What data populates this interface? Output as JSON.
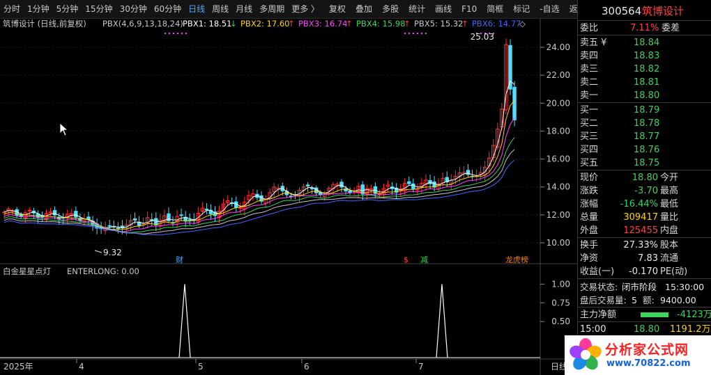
{
  "toolbar": {
    "periods": [
      "分时",
      "1分钟",
      "5分钟",
      "15分钟",
      "30分钟",
      "60分钟",
      "日线",
      "周线",
      "月线",
      "多周期",
      "更多 〉"
    ],
    "active": "日线",
    "tools": [
      "复权",
      "叠加",
      "多股",
      "统计",
      "画线",
      "F10",
      "简框",
      "标记",
      "-自选",
      "返回"
    ]
  },
  "main_panel": {
    "title": "筑博设计 (日线,前复权)",
    "indicator": "PBX(4,6,9,13,18,24)",
    "pbx": [
      {
        "label": "PBX1: 18.51",
        "arrow": "↓",
        "color": "#ffffff"
      },
      {
        "label": "PBX2: 17.60",
        "arrow": "↑",
        "color": "#ffd400"
      },
      {
        "label": "PBX3: 16.74",
        "arrow": "↑",
        "color": "#ff44ff"
      },
      {
        "label": "PBX4: 15.98",
        "arrow": "↑",
        "color": "#3ed35c"
      },
      {
        "label": "PBX5: 15.32",
        "arrow": "↑",
        "color": "#c8c8c8"
      },
      {
        "label": "PBX6: 14.77",
        "arrow": "◇",
        "color": "#4466ff"
      }
    ],
    "high_label": "25.03",
    "low_label": "9.32",
    "y_axis": [
      "24.00",
      "22.00",
      "20.00",
      "18.00",
      "16.00",
      "14.00",
      "12.00",
      "10.00"
    ],
    "markers": [
      {
        "text": "财",
        "color": "#4fa8ff"
      },
      {
        "text": "$",
        "color": "#ff4040"
      },
      {
        "text": "减",
        "color": "#3ed35c"
      },
      {
        "text": "龙虎榜",
        "color": "#ff7b00"
      }
    ]
  },
  "sub_panel": {
    "title": "白金星星点灯",
    "value": "ENTERLONG: 0.00",
    "y_axis": [
      "1.00",
      "0.75",
      "0.50"
    ]
  },
  "x_axis": [
    "2025年",
    "4",
    "5",
    "6",
    "7",
    "日线"
  ],
  "quote": {
    "code": "300564",
    "name": "筑博设计",
    "weibi_label": "委比",
    "weibi": "7.11%",
    "weicha_label": "委差",
    "asks": [
      {
        "label": "卖五 ¥",
        "price": "18.84"
      },
      {
        "label": "卖四",
        "price": "18.83"
      },
      {
        "label": "卖三",
        "price": "18.82"
      },
      {
        "label": "卖二",
        "price": "18.81"
      },
      {
        "label": "卖一",
        "price": "18.80"
      }
    ],
    "bids": [
      {
        "label": "买一",
        "price": "18.79"
      },
      {
        "label": "买二",
        "price": "18.78"
      },
      {
        "label": "买三",
        "price": "18.77"
      },
      {
        "label": "买四",
        "price": "18.76"
      },
      {
        "label": "买五",
        "price": "18.75"
      }
    ],
    "stats": [
      {
        "label": "现价",
        "value": "18.80",
        "color": "green",
        "label2": "今开"
      },
      {
        "label": "涨跌",
        "value": "-3.70",
        "color": "green",
        "label2": "最高"
      },
      {
        "label": "涨幅",
        "value": "-16.44%",
        "color": "green",
        "label2": "最低"
      },
      {
        "label": "总量",
        "value": "309417",
        "color": "yellow",
        "label2": "量比"
      },
      {
        "label": "外盘",
        "value": "125455",
        "color": "red",
        "label2": "内盘"
      }
    ],
    "stats2": [
      {
        "label": "换手",
        "value": "27.33%",
        "label2": "股本"
      },
      {
        "label": "净资",
        "value": "7.83",
        "label2": "流通"
      },
      {
        "label": "收益(一)",
        "value": "-0.170",
        "label2": "PE(动)"
      }
    ],
    "trade_status_label": "交易状态:",
    "trade_status": "闭市阶段",
    "trade_time": "15:30:00",
    "after_volume_label": "盘后交易量:",
    "after_volume": "5",
    "after_amount_label": "额:",
    "after_amount": "9400.00",
    "net_inflow_label": "主力净额",
    "net_inflow": "-4123万",
    "tick_time": "15:00",
    "tick_price": "18.80",
    "tick_amount": "1191.2万"
  },
  "watermark": {
    "brand": "分析家公式网",
    "url": "www.70822.com"
  }
}
